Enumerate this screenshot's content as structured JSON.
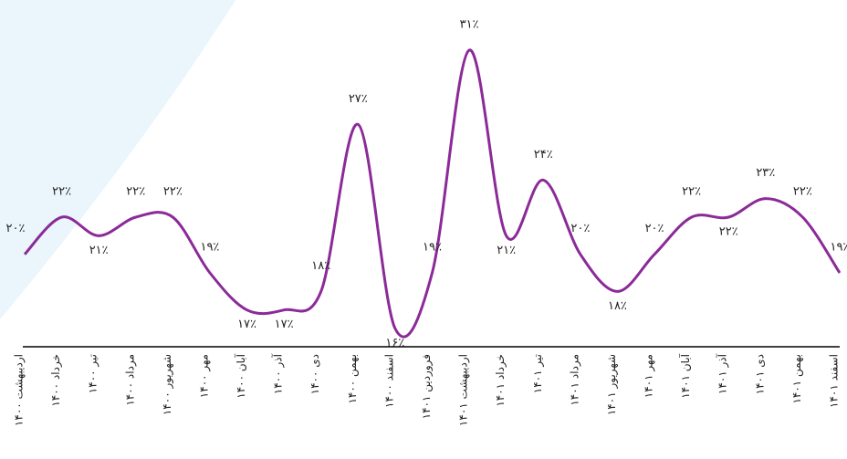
{
  "chart_data": {
    "type": "line",
    "categories": [
      "اردیبهشت ۱۴۰۰",
      "خرداد ۱۴۰۰",
      "تیر ۱۴۰۰",
      "مرداد ۱۴۰۰",
      "شهریور ۱۴۰۰",
      "مهر ۱۴۰۰",
      "آبان ۱۴۰۰",
      "آذر ۱۴۰۰",
      "دی ۱۴۰۰",
      "بهمن ۱۴۰۰",
      "اسفند ۱۴۰۰",
      "فروردین ۱۴۰۱",
      "اردیبهشت ۱۴۰۱",
      "خرداد ۱۴۰۱",
      "تیر ۱۴۰۱",
      "مرداد ۱۴۰۱",
      "شهریور ۱۴۰۱",
      "مهر ۱۴۰۱",
      "آبان ۱۴۰۱",
      "آذر ۱۴۰۱",
      "دی ۱۴۰۱",
      "بهمن ۱۴۰۱",
      "اسفند ۱۴۰۱"
    ],
    "series": [
      {
        "color": "#8b2a98",
        "values": [
          20,
          22,
          21,
          22,
          22,
          19,
          17,
          17,
          18,
          27,
          16,
          19,
          31,
          21,
          24,
          20,
          18,
          20,
          22,
          22,
          23,
          22,
          19
        ],
        "value_labels": [
          "۲۰٪",
          "۲۲٪",
          "۲۱٪",
          "۲۲٪",
          "۲۲٪",
          "۱۹٪",
          "۱۷٪",
          "۱۷٪",
          "۱۸٪",
          "۲۷٪",
          "۱۶٪",
          "۱۹٪",
          "۳۱٪",
          "۲۱٪",
          "۲۴٪",
          "۲۰٪",
          "۱۸٪",
          "۲۰٪",
          "۲۲٪",
          "۲۲٪",
          "۲۳٪",
          "۲۲٪",
          "۱۹٪"
        ]
      }
    ]
  }
}
